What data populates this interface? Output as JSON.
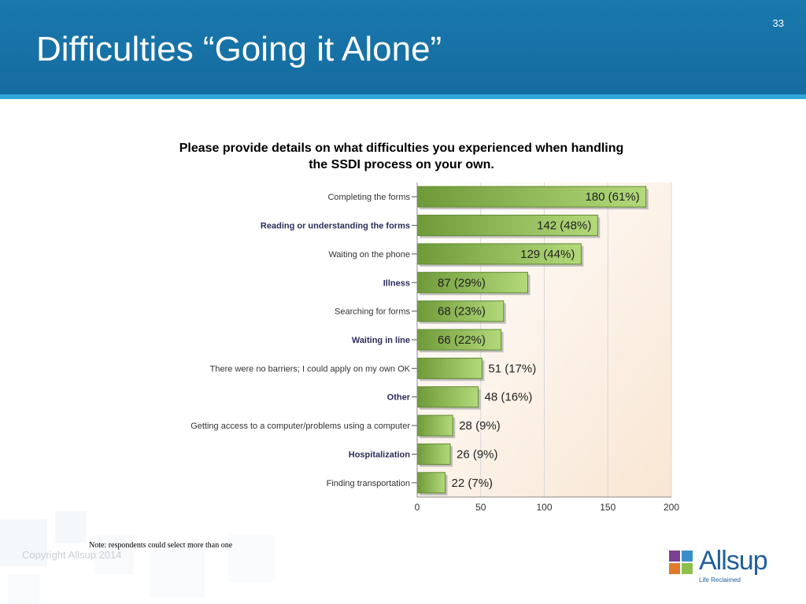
{
  "slide": {
    "title": "Difficulties “Going it Alone”",
    "number": "33",
    "copyright": "Copyright Allsup 2014",
    "note": "Note: respondents could select more than one"
  },
  "logo": {
    "name": "Allsup",
    "tagline": "Life Reclaimed"
  },
  "colors": {
    "header": "#1a78ad",
    "bar_dark": "#6f9a3a",
    "bar_light": "#a6d06a",
    "plot_bg": "#fbeee2"
  },
  "chart_data": {
    "type": "bar",
    "orientation": "horizontal",
    "title": "Please provide details on what difficulties you experienced when handling the SSDI process on your own.",
    "title_lines": [
      "Please provide details on what difficulties you experienced when handling",
      "the SSDI process on your own."
    ],
    "categories": [
      "Completing the forms",
      "Reading or understanding the forms",
      "Waiting on the phone",
      "Illness",
      "Searching for forms",
      "Waiting in line",
      "There were no barriers; I could apply on my own OK",
      "Other",
      "Getting access to a computer/problems using a computer",
      "Hospitalization",
      "Finding transportation"
    ],
    "bold_categories": [
      1,
      3,
      5,
      7,
      9
    ],
    "values": [
      180,
      142,
      129,
      87,
      68,
      66,
      51,
      48,
      28,
      26,
      22
    ],
    "data_labels": [
      "180 (61%)",
      "142 (48%)",
      "129 (44%)",
      "87 (29%)",
      "68 (23%)",
      "66 (22%)",
      "51 (17%)",
      "48 (16%)",
      "28 (9%)",
      "26 (9%)",
      "22 (7%)"
    ],
    "xlim": [
      0,
      200
    ],
    "xticks": [
      0,
      50,
      100,
      150,
      200
    ],
    "grid": true
  }
}
